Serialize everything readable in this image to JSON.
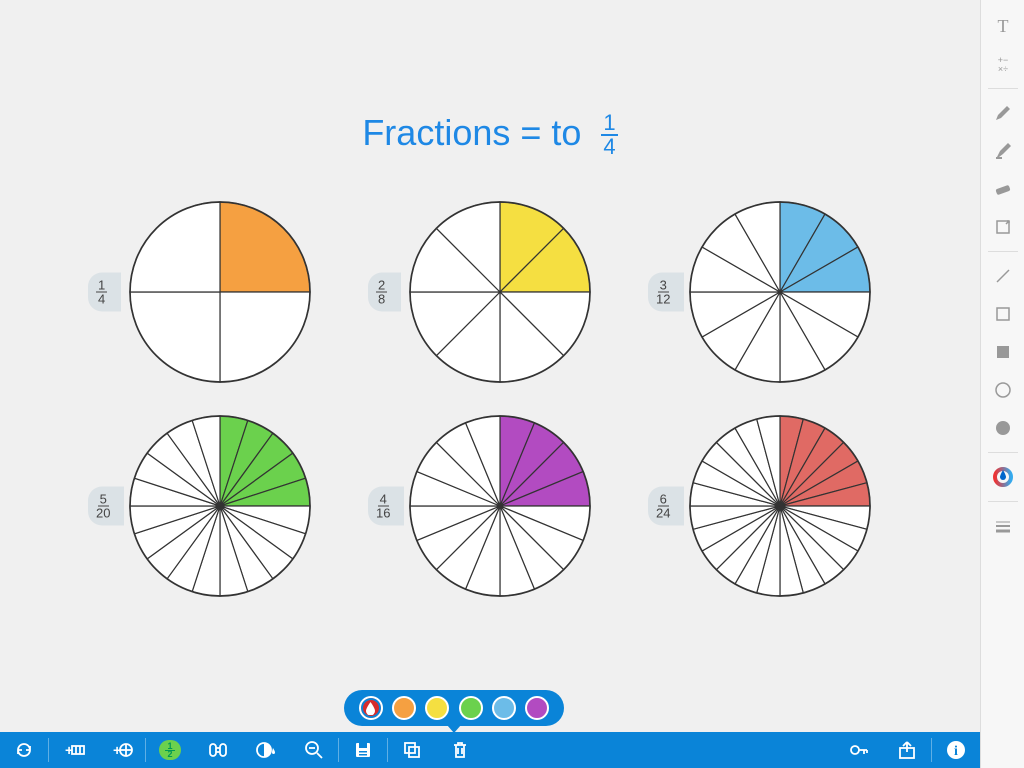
{
  "title": {
    "prefix": "Fractions = to",
    "numerator": "1",
    "denominator": "4"
  },
  "background_color": "#f0f0f0",
  "accent_color": "#0a84d8",
  "title_color": "#1e88e5",
  "circles": [
    {
      "numerator": 1,
      "denominator": 4,
      "fill_color": "#f5a041",
      "radius": 90
    },
    {
      "numerator": 2,
      "denominator": 8,
      "fill_color": "#f5df41",
      "radius": 90
    },
    {
      "numerator": 3,
      "denominator": 12,
      "fill_color": "#6cbce8",
      "radius": 90
    },
    {
      "numerator": 5,
      "denominator": 20,
      "fill_color": "#6bd14d",
      "radius": 90
    },
    {
      "numerator": 4,
      "denominator": 16,
      "fill_color": "#b24bc1",
      "radius": 90
    },
    {
      "numerator": 6,
      "denominator": 24,
      "fill_color": "#e06a64",
      "radius": 90
    }
  ],
  "stroke_color": "#333333",
  "stroke_width": 1.2,
  "color_palette": [
    {
      "color": "#d62c2c",
      "selected": true,
      "drop": true
    },
    {
      "color": "#f5a041",
      "selected": false
    },
    {
      "color": "#f5df41",
      "selected": false
    },
    {
      "color": "#6bd14d",
      "selected": false
    },
    {
      "color": "#6cbce8",
      "selected": false
    },
    {
      "color": "#b24bc1",
      "selected": false
    }
  ],
  "right_tools": [
    {
      "name": "text-tool-icon"
    },
    {
      "name": "math-tool-icon"
    },
    {
      "divider": true
    },
    {
      "name": "pencil-icon"
    },
    {
      "name": "highlighter-icon"
    },
    {
      "name": "eraser-icon"
    },
    {
      "name": "crop-icon"
    },
    {
      "divider": true
    },
    {
      "name": "line-icon"
    },
    {
      "name": "square-outline-icon"
    },
    {
      "name": "square-fill-icon"
    },
    {
      "name": "circle-outline-icon"
    },
    {
      "name": "circle-fill-icon"
    },
    {
      "divider": true
    },
    {
      "name": "color-wheel-icon"
    },
    {
      "divider": true
    },
    {
      "name": "line-weight-icon"
    }
  ],
  "bottom_tools_left": [
    {
      "name": "sync-icon"
    },
    {
      "sep": true
    },
    {
      "name": "add-bar-icon"
    },
    {
      "name": "add-circle-icon"
    },
    {
      "sep": true
    },
    {
      "name": "fraction-toggle-icon"
    },
    {
      "name": "swap-icon"
    },
    {
      "name": "color-fill-icon"
    },
    {
      "name": "zoom-out-icon"
    },
    {
      "sep": true
    },
    {
      "name": "save-icon"
    },
    {
      "sep": true
    },
    {
      "name": "copy-icon"
    },
    {
      "name": "trash-icon"
    }
  ],
  "bottom_tools_right": [
    {
      "name": "key-icon"
    },
    {
      "name": "share-icon"
    },
    {
      "sep": true
    },
    {
      "name": "info-icon"
    }
  ]
}
